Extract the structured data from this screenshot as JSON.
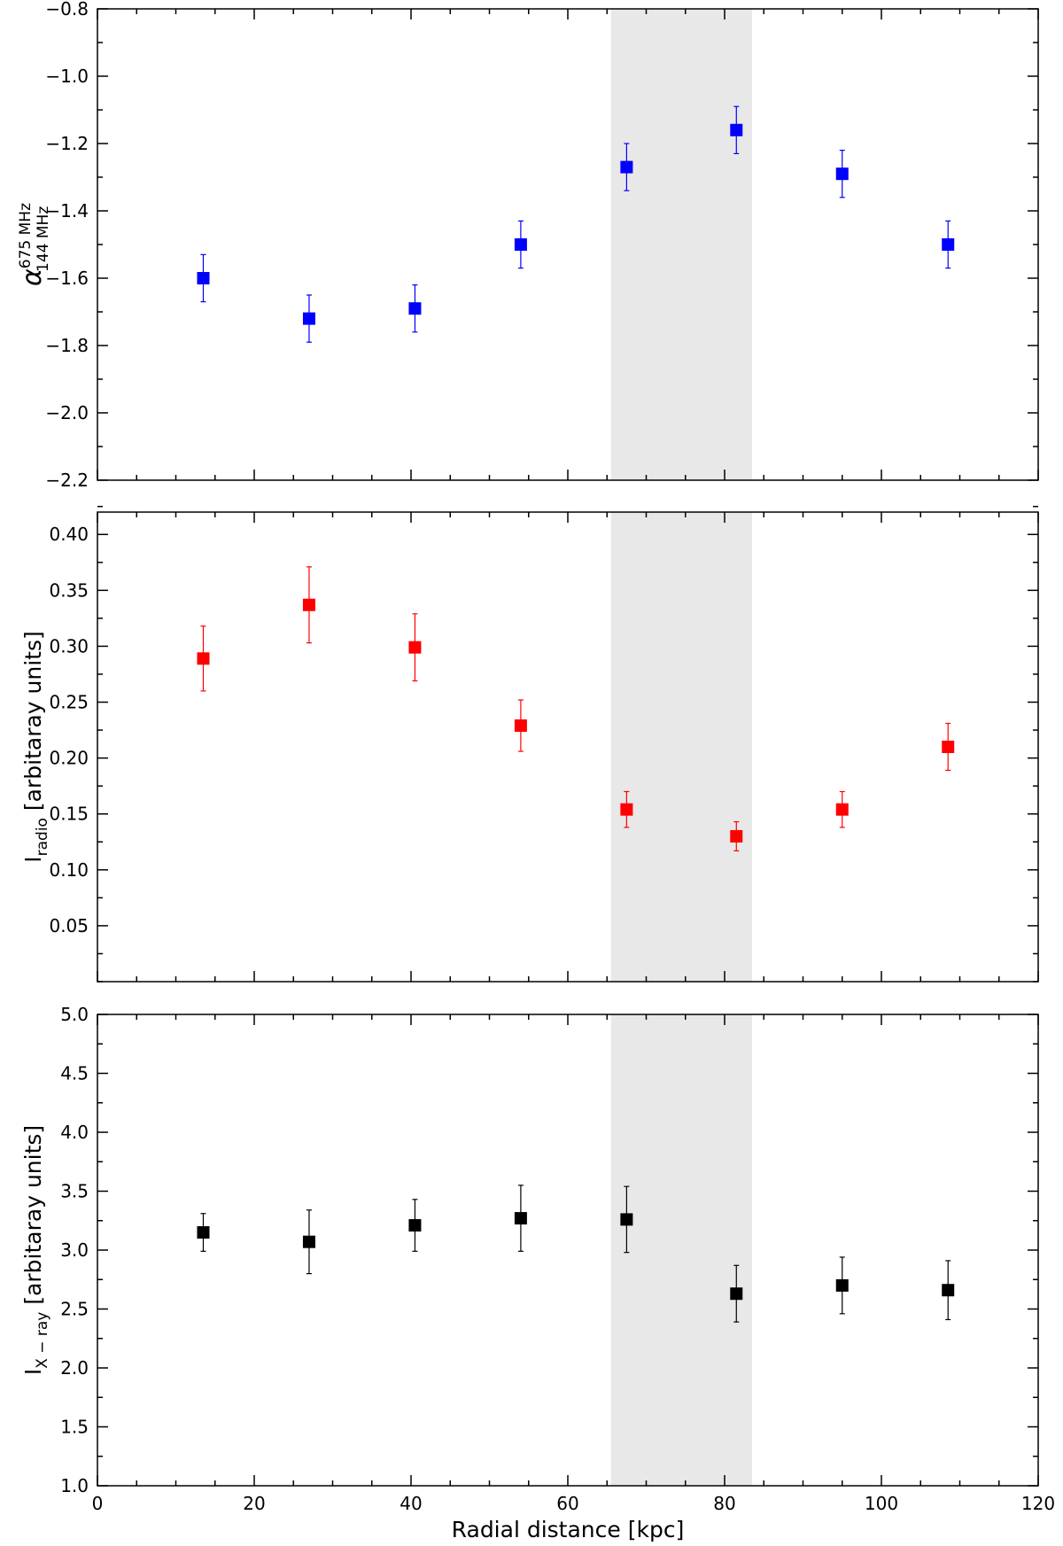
{
  "xlabel": "Radial distance [kpc]",
  "xlim": [
    0,
    120
  ],
  "x_major_ticks": [
    0,
    20,
    40,
    60,
    80,
    100,
    120
  ],
  "x_minor_step": 5,
  "shaded_region": {
    "x": [
      65.5,
      83.5
    ],
    "color": "#e8e8e8"
  },
  "panels": [
    {
      "id": "spectral-index",
      "ylabel": {
        "symbol": "α",
        "sup": "675 MHz",
        "sub": "144 MHz"
      },
      "ylim": [
        -2.2,
        -0.8
      ],
      "y_ticks": [
        -2.2,
        -2.0,
        -1.8,
        -1.6,
        -1.4,
        -1.2,
        -1.0,
        -0.8
      ],
      "y_tick_labels": [
        "−2.2",
        "−2.0",
        "−1.8",
        "−1.6",
        "−1.4",
        "−1.2",
        "−1.0",
        "−0.8"
      ],
      "y_minor_step": 0.1,
      "color": "#0000ff"
    },
    {
      "id": "radio-intensity",
      "ylabel": {
        "main": "I",
        "sub": "radio",
        "rest": " [arbitaray units]"
      },
      "ylim": [
        0.0,
        0.42
      ],
      "y_ticks": [
        0.05,
        0.1,
        0.15,
        0.2,
        0.25,
        0.3,
        0.35,
        0.4
      ],
      "y_tick_labels": [
        "0.05",
        "0.10",
        "0.15",
        "0.20",
        "0.25",
        "0.30",
        "0.35",
        "0.40"
      ],
      "y_minor_step": 0.025,
      "color": "#ff0000"
    },
    {
      "id": "xray-intensity",
      "ylabel": {
        "main": "I",
        "sub": "X − ray",
        "rest": " [arbitaray units]"
      },
      "ylim": [
        1.0,
        5.0
      ],
      "y_ticks": [
        1.0,
        1.5,
        2.0,
        2.5,
        3.0,
        3.5,
        4.0,
        4.5,
        5.0
      ],
      "y_tick_labels": [
        "1.0",
        "1.5",
        "2.0",
        "2.5",
        "3.0",
        "3.5",
        "4.0",
        "4.5",
        "5.0"
      ],
      "y_minor_step": 0.25,
      "color": "#000000"
    }
  ],
  "chart_data": [
    {
      "type": "scatter",
      "title": "",
      "xlabel": "",
      "ylabel": "α 675 MHz / 144 MHz",
      "ylim": [
        -2.2,
        -0.8
      ],
      "x": [
        13.5,
        27,
        40.5,
        54,
        67.5,
        81.5,
        95,
        108.5
      ],
      "y": [
        -1.6,
        -1.72,
        -1.69,
        -1.5,
        -1.27,
        -1.16,
        -1.29,
        -1.5
      ],
      "yerr": [
        0.07,
        0.07,
        0.07,
        0.07,
        0.07,
        0.07,
        0.07,
        0.07
      ],
      "marker": "square",
      "color": "#0000ff"
    },
    {
      "type": "scatter",
      "title": "",
      "xlabel": "",
      "ylabel": "I radio [arbitaray units]",
      "ylim": [
        0.0,
        0.42
      ],
      "x": [
        13.5,
        27,
        40.5,
        54,
        67.5,
        81.5,
        95,
        108.5
      ],
      "y": [
        0.289,
        0.337,
        0.299,
        0.229,
        0.154,
        0.13,
        0.154,
        0.21
      ],
      "yerr": [
        0.029,
        0.034,
        0.03,
        0.023,
        0.016,
        0.013,
        0.016,
        0.021
      ],
      "marker": "square",
      "color": "#ff0000"
    },
    {
      "type": "scatter",
      "title": "",
      "xlabel": "Radial distance [kpc]",
      "ylabel": "I X − ray [arbitaray units]",
      "xlim": [
        0,
        120
      ],
      "ylim": [
        1.0,
        5.0
      ],
      "x": [
        13.5,
        27,
        40.5,
        54,
        67.5,
        81.5,
        95,
        108.5
      ],
      "y": [
        3.15,
        3.07,
        3.21,
        3.27,
        3.26,
        2.63,
        2.7,
        2.66
      ],
      "yerr": [
        0.16,
        0.27,
        0.22,
        0.28,
        0.28,
        0.24,
        0.24,
        0.25
      ],
      "marker": "square",
      "color": "#000000"
    }
  ]
}
